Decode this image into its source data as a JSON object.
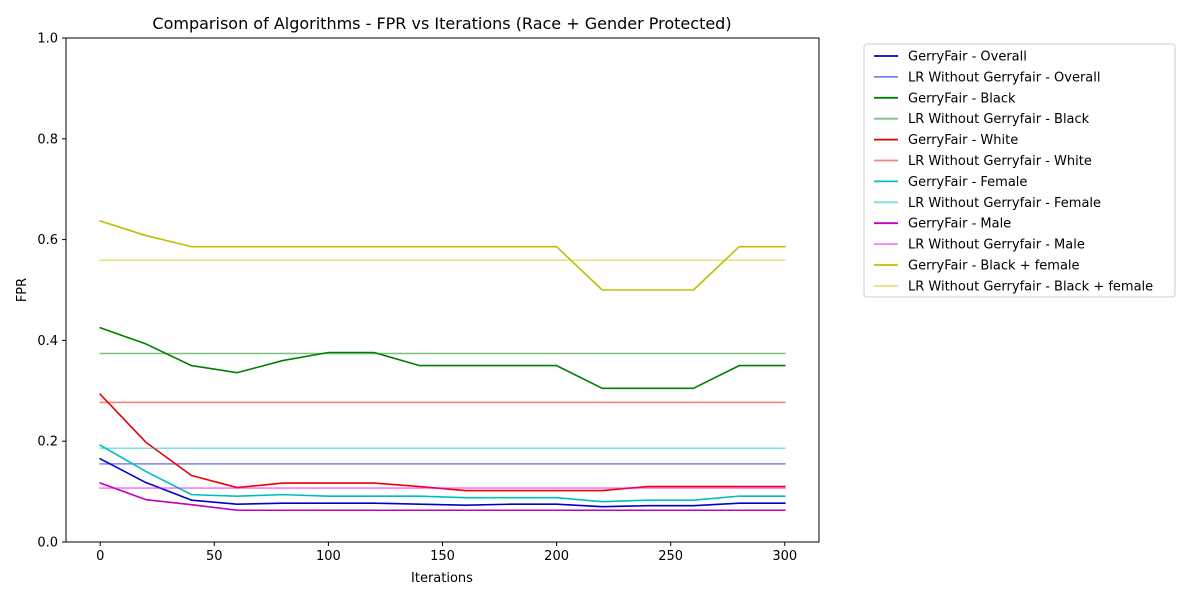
{
  "chart_data": {
    "type": "line",
    "title": "Comparison of Algorithms - FPR vs Iterations (Race + Gender Protected)",
    "xlabel": "Iterations",
    "ylabel": "FPR",
    "xlim": [
      -15,
      315
    ],
    "ylim": [
      0,
      1.0
    ],
    "xticks": [
      0,
      50,
      100,
      150,
      200,
      250,
      300
    ],
    "yticks": [
      0.0,
      0.2,
      0.4,
      0.6,
      0.8,
      1.0
    ],
    "ytick_labels": [
      "0.0",
      "0.2",
      "0.4",
      "0.6",
      "0.8",
      "1.0"
    ],
    "grid": false,
    "legend_position": "outside-right",
    "x": [
      0,
      20,
      40,
      60,
      80,
      100,
      120,
      140,
      160,
      180,
      200,
      220,
      240,
      260,
      280,
      300
    ],
    "series": [
      {
        "name": "GerryFair - Overall",
        "color": "#0000cc",
        "opacity": 1,
        "values": [
          0.165,
          0.118,
          0.083,
          0.075,
          0.077,
          0.077,
          0.077,
          0.075,
          0.073,
          0.075,
          0.075,
          0.07,
          0.072,
          0.072,
          0.077,
          0.077
        ]
      },
      {
        "name": "LR Without Gerryfair - Overall",
        "color": "#0000ee",
        "opacity": 0.5,
        "values": [
          0.155,
          0.155,
          0.155,
          0.155,
          0.155,
          0.155,
          0.155,
          0.155,
          0.155,
          0.155,
          0.155,
          0.155,
          0.155,
          0.155,
          0.155,
          0.155
        ]
      },
      {
        "name": "GerryFair - Black",
        "color": "#008000",
        "opacity": 1,
        "values": [
          0.425,
          0.393,
          0.35,
          0.336,
          0.36,
          0.376,
          0.376,
          0.35,
          0.35,
          0.35,
          0.35,
          0.305,
          0.305,
          0.305,
          0.35,
          0.35
        ]
      },
      {
        "name": "LR Without Gerryfair - Black",
        "color": "#008000",
        "opacity": 0.5,
        "values": [
          0.374,
          0.374,
          0.374,
          0.374,
          0.374,
          0.374,
          0.374,
          0.374,
          0.374,
          0.374,
          0.374,
          0.374,
          0.374,
          0.374,
          0.374,
          0.374
        ]
      },
      {
        "name": "GerryFair - White",
        "color": "#ee0000",
        "opacity": 1,
        "values": [
          0.293,
          0.198,
          0.132,
          0.108,
          0.117,
          0.117,
          0.117,
          0.11,
          0.102,
          0.102,
          0.102,
          0.102,
          0.11,
          0.11,
          0.11,
          0.11
        ]
      },
      {
        "name": "LR Without Gerryfair - White",
        "color": "#ee0000",
        "opacity": 0.5,
        "values": [
          0.277,
          0.277,
          0.277,
          0.277,
          0.277,
          0.277,
          0.277,
          0.277,
          0.277,
          0.277,
          0.277,
          0.277,
          0.277,
          0.277,
          0.277,
          0.277
        ]
      },
      {
        "name": "GerryFair - Female",
        "color": "#00bfbf",
        "opacity": 1,
        "values": [
          0.192,
          0.14,
          0.094,
          0.091,
          0.094,
          0.091,
          0.091,
          0.091,
          0.088,
          0.088,
          0.088,
          0.08,
          0.083,
          0.083,
          0.091,
          0.091
        ]
      },
      {
        "name": "LR Without Gerryfair - Female",
        "color": "#00bfbf",
        "opacity": 0.5,
        "values": [
          0.186,
          0.186,
          0.186,
          0.186,
          0.186,
          0.186,
          0.186,
          0.186,
          0.186,
          0.186,
          0.186,
          0.186,
          0.186,
          0.186,
          0.186,
          0.186
        ]
      },
      {
        "name": "GerryFair - Male",
        "color": "#bf00bf",
        "opacity": 1,
        "values": [
          0.117,
          0.084,
          0.074,
          0.063,
          0.063,
          0.063,
          0.063,
          0.063,
          0.063,
          0.063,
          0.063,
          0.063,
          0.063,
          0.063,
          0.063,
          0.063
        ]
      },
      {
        "name": "LR Without Gerryfair - Male",
        "color": "#ee00ee",
        "opacity": 0.5,
        "values": [
          0.107,
          0.107,
          0.107,
          0.107,
          0.107,
          0.107,
          0.107,
          0.107,
          0.107,
          0.107,
          0.107,
          0.107,
          0.107,
          0.107,
          0.107,
          0.107
        ]
      },
      {
        "name": "GerryFair - Black + female",
        "color": "#bfbf00",
        "opacity": 1,
        "values": [
          0.637,
          0.608,
          0.586,
          0.586,
          0.586,
          0.586,
          0.586,
          0.586,
          0.586,
          0.586,
          0.586,
          0.5,
          0.5,
          0.5,
          0.586,
          0.586
        ]
      },
      {
        "name": "LR Without Gerryfair - Black + female",
        "color": "#d4c000",
        "opacity": 0.5,
        "values": [
          0.559,
          0.559,
          0.559,
          0.559,
          0.559,
          0.559,
          0.559,
          0.559,
          0.559,
          0.559,
          0.559,
          0.559,
          0.559,
          0.559,
          0.559,
          0.559
        ]
      }
    ]
  }
}
